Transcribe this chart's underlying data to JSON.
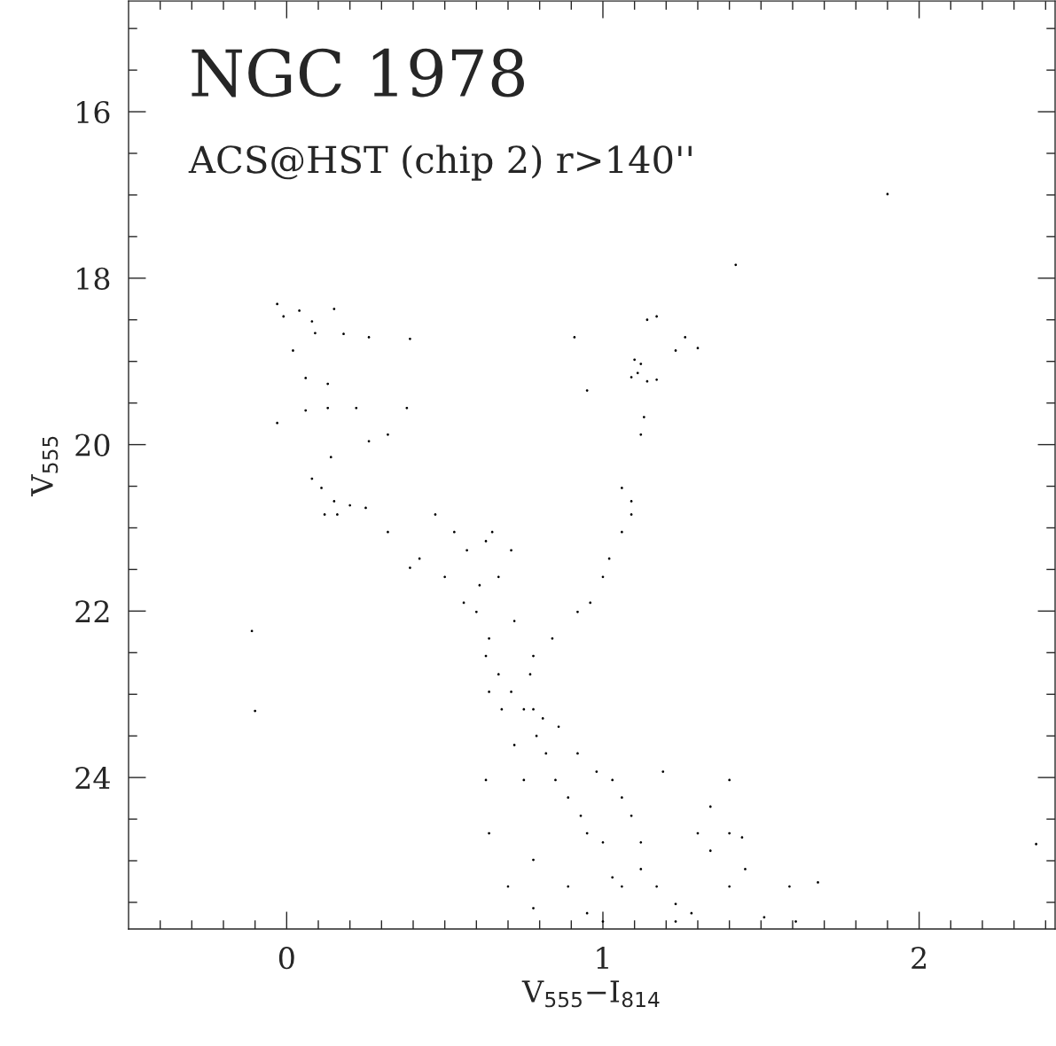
{
  "chart_data": {
    "type": "scatter",
    "title": "NGC 1978",
    "annotations": [
      "ACS@HST (chip 2) r>140''"
    ],
    "xlabel": "V$_{555}$−I$_{814}$",
    "ylabel": "V$_{555}$",
    "xlim": [
      -0.5,
      2.43
    ],
    "ylim": [
      25.82,
      14.67
    ],
    "xticks": [
      {
        "value": -0.4,
        "label": null
      },
      {
        "value": -0.3,
        "label": null
      },
      {
        "value": -0.2,
        "label": null
      },
      {
        "value": -0.1,
        "label": null
      },
      0,
      {
        "value": 0.1,
        "label": null
      },
      {
        "value": 0.2,
        "label": null
      },
      {
        "value": 0.3,
        "label": null
      },
      {
        "value": 0.4,
        "label": null
      },
      {
        "value": 0.5,
        "label": null
      },
      {
        "value": 0.6,
        "label": null
      },
      {
        "value": 0.7,
        "label": null
      },
      {
        "value": 0.8,
        "label": null
      },
      {
        "value": 0.9,
        "label": null
      },
      1,
      {
        "value": 1.1,
        "label": null
      },
      {
        "value": 1.2,
        "label": null
      },
      {
        "value": 1.3,
        "label": null
      },
      {
        "value": 1.4,
        "label": null
      },
      {
        "value": 1.5,
        "label": null
      },
      {
        "value": 1.6,
        "label": null
      },
      {
        "value": 1.7,
        "label": null
      },
      {
        "value": 1.8,
        "label": null
      },
      {
        "value": 1.9,
        "label": null
      },
      2,
      {
        "value": 2.1,
        "label": null
      },
      {
        "value": 2.2,
        "label": null
      },
      {
        "value": 2.3,
        "label": null
      },
      {
        "value": 2.4,
        "label": null
      }
    ],
    "yticks": [
      {
        "value": 15,
        "label": null
      },
      {
        "value": 15.5,
        "label": null
      },
      16,
      {
        "value": 16.5,
        "label": null
      },
      {
        "value": 17,
        "label": null
      },
      {
        "value": 17.5,
        "label": null
      },
      18,
      {
        "value": 18.5,
        "label": null
      },
      {
        "value": 19,
        "label": null
      },
      {
        "value": 19.5,
        "label": null
      },
      20,
      {
        "value": 20.5,
        "label": null
      },
      {
        "value": 21,
        "label": null
      },
      {
        "value": 21.5,
        "label": null
      },
      22,
      {
        "value": 22.5,
        "label": null
      },
      {
        "value": 23,
        "label": null
      },
      {
        "value": 23.5,
        "label": null
      },
      24,
      {
        "value": 24.5,
        "label": null
      },
      {
        "value": 25,
        "label": null
      },
      {
        "value": 25.5,
        "label": null
      }
    ],
    "grid": false,
    "marker": "circle",
    "series": [
      {
        "color": "#000000",
        "x": [
          -0.03,
          -0.01,
          0.04,
          0.08,
          0.09,
          0.15,
          0.18,
          0.02,
          0.06,
          0.13,
          0.06,
          0.13,
          0.22,
          -0.03,
          0.26,
          0.32,
          0.14,
          0.08,
          0.11,
          0.15,
          0.2,
          0.25,
          0.16,
          0.12,
          0.32,
          0.26,
          0.39,
          0.38,
          1.1,
          1.12,
          1.14,
          1.17,
          1.09,
          1.11,
          1.13,
          1.12,
          1.06,
          1.09,
          1.09,
          1.06,
          1.02,
          1.0,
          0.96,
          0.92,
          1.17,
          1.26,
          1.23,
          1.14,
          1.3,
          1.42,
          1.9,
          0.91,
          0.95,
          0.47,
          0.53,
          0.57,
          0.63,
          0.65,
          0.5,
          0.42,
          0.39,
          0.56,
          0.6,
          0.61,
          0.67,
          0.71,
          0.72,
          0.64,
          0.63,
          0.67,
          0.71,
          0.75,
          0.78,
          0.84,
          0.77,
          0.79,
          0.82,
          0.85,
          0.89,
          0.93,
          0.95,
          1.0,
          1.03,
          1.06,
          1.12,
          1.17,
          1.23,
          1.28,
          1.4,
          1.51,
          1.59,
          1.68,
          0.78,
          0.81,
          0.86,
          0.92,
          0.98,
          1.03,
          1.06,
          1.09,
          1.12,
          0.75,
          0.72,
          0.68,
          0.64,
          0.63,
          0.64,
          0.7,
          0.78,
          0.89,
          0.95,
          1.0,
          1.23,
          1.34,
          1.4,
          1.44,
          1.3,
          1.19,
          1.4,
          0.78,
          -0.11,
          -0.1,
          2.37,
          1.61,
          1.45,
          1.34
        ],
        "values": [
          18.31,
          18.46,
          18.39,
          18.52,
          18.66,
          18.37,
          18.67,
          18.87,
          19.2,
          19.27,
          19.59,
          19.56,
          19.56,
          19.74,
          19.96,
          19.88,
          20.15,
          20.41,
          20.52,
          20.68,
          20.73,
          20.76,
          20.84,
          20.84,
          21.05,
          18.71,
          18.73,
          19.56,
          18.98,
          19.03,
          19.24,
          19.22,
          19.19,
          19.14,
          19.67,
          19.88,
          20.52,
          20.84,
          20.68,
          21.05,
          21.37,
          21.59,
          21.9,
          22.01,
          18.46,
          18.71,
          18.87,
          18.5,
          18.84,
          17.84,
          16.99,
          18.71,
          19.35,
          20.84,
          21.05,
          21.27,
          21.16,
          21.05,
          21.59,
          21.37,
          21.48,
          21.9,
          22.01,
          21.69,
          21.59,
          21.27,
          22.12,
          22.33,
          22.54,
          22.76,
          22.97,
          23.18,
          22.54,
          22.33,
          22.76,
          23.5,
          23.71,
          24.03,
          24.24,
          24.46,
          24.67,
          24.78,
          25.2,
          25.31,
          25.1,
          25.31,
          25.52,
          25.63,
          25.31,
          25.68,
          25.31,
          25.26,
          23.18,
          23.29,
          23.39,
          23.71,
          23.93,
          24.03,
          24.24,
          24.46,
          24.78,
          24.03,
          23.61,
          23.18,
          22.97,
          24.03,
          24.67,
          25.31,
          24.99,
          25.31,
          25.63,
          25.73,
          25.73,
          24.88,
          24.67,
          24.72,
          24.67,
          23.93,
          24.03,
          25.57,
          22.24,
          23.2,
          24.8,
          25.73,
          25.1,
          24.35
        ]
      }
    ]
  }
}
